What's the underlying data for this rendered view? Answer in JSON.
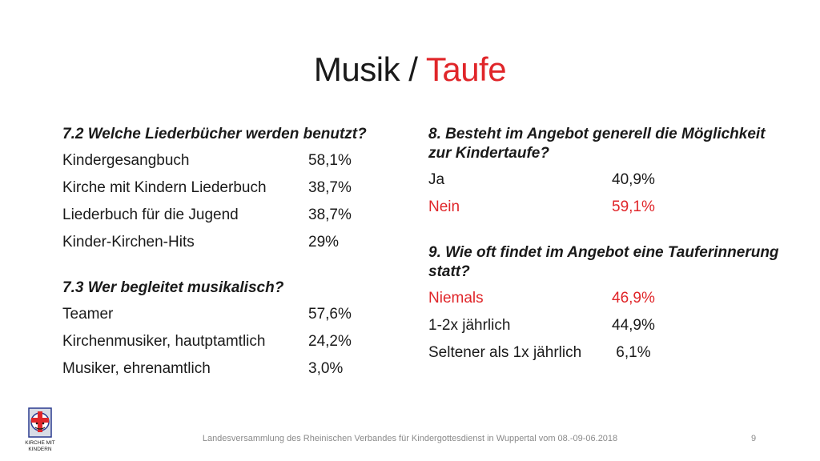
{
  "slide": {
    "title_main": "Musik / ",
    "title_accent": "Taufe",
    "left": {
      "q1": "7.2 Welche Liederbücher werden benutzt?",
      "q1_rows": [
        {
          "label": "Kindergesangbuch",
          "value": "58,1%"
        },
        {
          "label": "Kirche mit Kindern Liederbuch",
          "value": "38,7%"
        },
        {
          "label": "Liederbuch für die Jugend",
          "value": "38,7%"
        },
        {
          "label": "Kinder-Kirchen-Hits",
          "value": "29%"
        }
      ],
      "q2": "7.3 Wer begleitet musikalisch?",
      "q2_rows": [
        {
          "label": "Teamer",
          "value": "57,6%"
        },
        {
          "label": "Kirchenmusiker, hautptamtlich",
          "value": "24,2%"
        },
        {
          "label": "Musiker, ehrenamtlich",
          "value": "3,0%"
        }
      ]
    },
    "right": {
      "q1": "8. Besteht im Angebot generell die Möglichkeit zur Kindertaufe?",
      "q1_rows": [
        {
          "label": "Ja",
          "value": "40,9%"
        },
        {
          "label": "Nein",
          "value": "59,1%"
        }
      ],
      "q2": "9. Wie oft findet im Angebot eine Tauferinnerung statt?",
      "q2_rows": [
        {
          "label": "Niemals",
          "value": "46,9%"
        },
        {
          "label": "1-2x jährlich",
          "value": "44,9%"
        },
        {
          "label": "Seltener als 1x jährlich",
          "value": " 6,1%"
        }
      ]
    },
    "footer": "Landesversammlung des Rheinischen Verbandes für Kindergottesdienst in Wuppertal vom 08.-09-06.2018",
    "page_number": "9",
    "logo_text": "KIRCHE MIT KINDERN",
    "colors": {
      "accent": "#e0262a",
      "text": "#1a1a1a",
      "footer": "#8a8a8a"
    }
  }
}
